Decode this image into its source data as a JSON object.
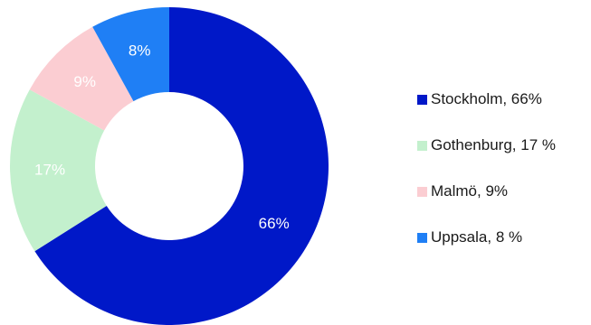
{
  "chart_data": {
    "type": "pie",
    "donut": true,
    "title": "",
    "legend_position": "right",
    "slices": [
      {
        "label": "Stockholm",
        "value": 66,
        "value_label": "66%",
        "legend_label": "Stockholm, 66%",
        "color": "#0018c8",
        "label_color": "#ffffff"
      },
      {
        "label": "Gothenburg",
        "value": 17,
        "value_label": "17%",
        "legend_label": "Gothenburg, 17 %",
        "color": "#c3f0cd",
        "label_color": "#ffffff"
      },
      {
        "label": "Malmö",
        "value": 9,
        "value_label": "9%",
        "legend_label": "Malmö, 9%",
        "color": "#fbcdd2",
        "label_color": "#ffffff"
      },
      {
        "label": "Uppsala",
        "value": 8,
        "value_label": "8%",
        "legend_label": "Uppsala, 8 %",
        "color": "#1f7ff5",
        "label_color": "#ffffff"
      }
    ]
  }
}
